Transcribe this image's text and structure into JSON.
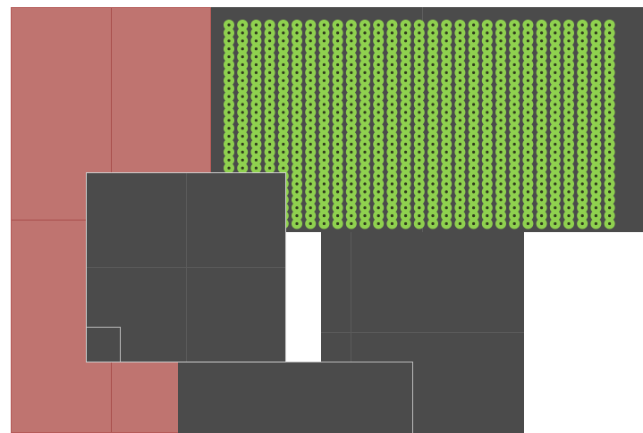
{
  "colors": {
    "background": "#ffffff",
    "red_panel": "#bf7470",
    "dark_panel": "#4b4b4b",
    "dot_fill": "#8fd14f",
    "dot_center": "#2f3a1c"
  },
  "dot_grid": {
    "columns": 29,
    "rows": 26
  }
}
